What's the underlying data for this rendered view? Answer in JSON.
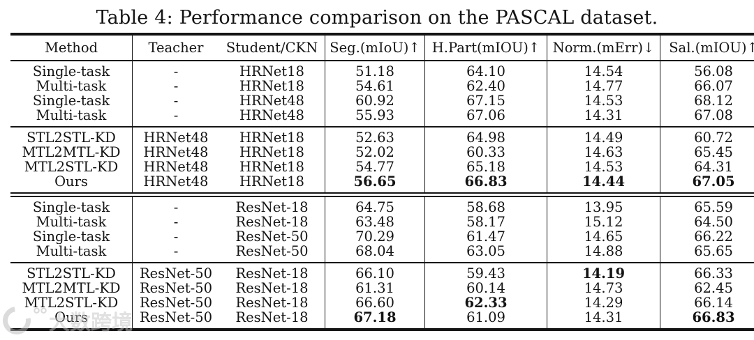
{
  "page": {
    "title": "Table 4: Performance comparison on the PASCAL dataset.",
    "text_color": "#141414",
    "background": "#ffffff",
    "watermark_text": "大数跨境",
    "watermark_color": "#c4c4c4"
  },
  "chart_data": {
    "type": "table",
    "title": "Table 4: Performance comparison on the PASCAL dataset.",
    "columns": [
      "Method",
      "Teacher",
      "Student/CKN",
      "Seg.(mIoU)↑",
      "H.Part(mIOU)↑",
      "Norm.(mErr)↓",
      "Sal.(mIOU)↑"
    ],
    "blocks": [
      {
        "separator_before": "none",
        "rows": [
          {
            "cells": [
              "Single-task",
              "-",
              "HRNet18",
              "51.18",
              "64.10",
              "14.54",
              "56.08"
            ],
            "bold_cols": []
          },
          {
            "cells": [
              "Multi-task",
              "-",
              "HRNet18",
              "54.61",
              "62.40",
              "14.77",
              "66.07"
            ],
            "bold_cols": []
          },
          {
            "cells": [
              "Single-task",
              "-",
              "HRNet48",
              "60.92",
              "67.15",
              "14.53",
              "68.12"
            ],
            "bold_cols": []
          },
          {
            "cells": [
              "Multi-task",
              "-",
              "HRNet48",
              "55.93",
              "67.06",
              "14.31",
              "67.08"
            ],
            "bold_cols": []
          }
        ]
      },
      {
        "separator_before": "single",
        "rows": [
          {
            "cells": [
              "STL2STL-KD",
              "HRNet48",
              "HRNet18",
              "52.63",
              "64.98",
              "14.49",
              "60.72"
            ],
            "bold_cols": []
          },
          {
            "cells": [
              "MTL2MTL-KD",
              "HRNet48",
              "HRNet18",
              "52.02",
              "60.33",
              "14.63",
              "65.45"
            ],
            "bold_cols": []
          },
          {
            "cells": [
              "MTL2STL-KD",
              "HRNet48",
              "HRNet18",
              "54.77",
              "65.18",
              "14.53",
              "64.31"
            ],
            "bold_cols": []
          },
          {
            "cells": [
              "Ours",
              "HRNet48",
              "HRNet18",
              "56.65",
              "66.83",
              "14.44",
              "67.05"
            ],
            "bold_cols": [
              3,
              4,
              5,
              6
            ]
          }
        ]
      },
      {
        "separator_before": "double",
        "rows": [
          {
            "cells": [
              "Single-task",
              "-",
              "ResNet-18",
              "64.75",
              "58.68",
              "13.95",
              "65.59"
            ],
            "bold_cols": []
          },
          {
            "cells": [
              "Multi-task",
              "-",
              "ResNet-18",
              "63.48",
              "58.17",
              "15.12",
              "64.50"
            ],
            "bold_cols": []
          },
          {
            "cells": [
              "Single-task",
              "-",
              "ResNet-50",
              "70.29",
              "61.47",
              "14.65",
              "66.22"
            ],
            "bold_cols": []
          },
          {
            "cells": [
              "Multi-task",
              "-",
              "ResNet-50",
              "68.04",
              "63.05",
              "14.88",
              "65.65"
            ],
            "bold_cols": []
          }
        ]
      },
      {
        "separator_before": "single",
        "rows": [
          {
            "cells": [
              "STL2STL-KD",
              "ResNet-50",
              "ResNet-18",
              "66.10",
              "59.43",
              "14.19",
              "66.33"
            ],
            "bold_cols": [
              5
            ]
          },
          {
            "cells": [
              "MTL2MTL-KD",
              "ResNet-50",
              "ResNet-18",
              "61.31",
              "60.14",
              "14.73",
              "62.45"
            ],
            "bold_cols": []
          },
          {
            "cells": [
              "MTL2STL-KD",
              "ResNet-50",
              "ResNet-18",
              "66.60",
              "62.33",
              "14.29",
              "66.14"
            ],
            "bold_cols": [
              4
            ]
          },
          {
            "cells": [
              "Ours",
              "ResNet-50",
              "ResNet-18",
              "67.18",
              "61.09",
              "14.31",
              "66.83"
            ],
            "bold_cols": [
              3,
              6
            ]
          }
        ]
      }
    ]
  }
}
